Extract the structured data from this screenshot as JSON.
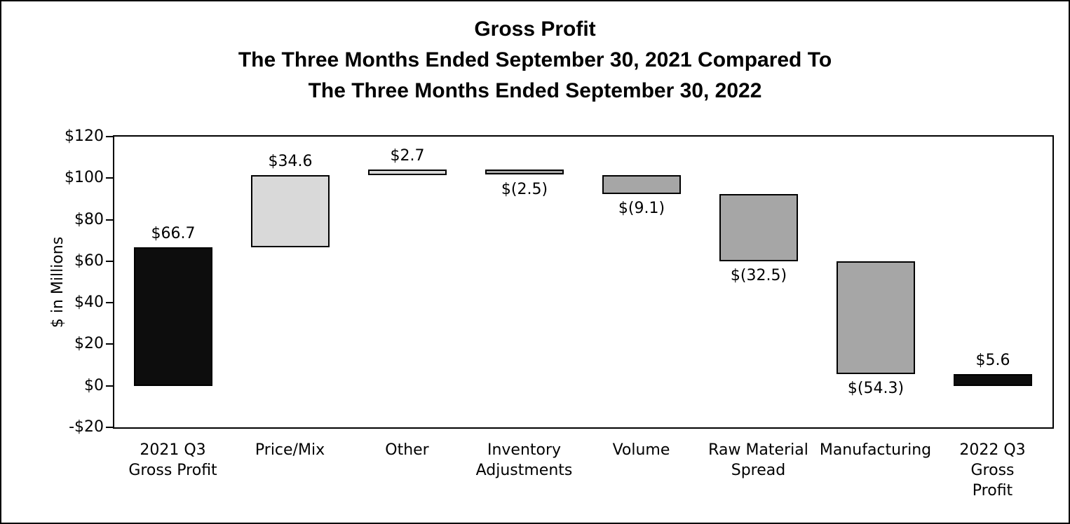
{
  "chart_data": {
    "type": "bar",
    "subtype": "waterfall",
    "title": "Gross Profit\nThe Three Months Ended September 30, 2021 Compared To\nThe Three Months Ended September 30, 2022",
    "ylabel": "$ in Millions",
    "ylim": [
      -20,
      120
    ],
    "ytick_step": 20,
    "grid": "off",
    "legend": "none",
    "yticks": [
      {
        "value": 120,
        "label": "$120"
      },
      {
        "value": 100,
        "label": "$100"
      },
      {
        "value": 80,
        "label": "$80"
      },
      {
        "value": 60,
        "label": "$60"
      },
      {
        "value": 40,
        "label": "$40"
      },
      {
        "value": 20,
        "label": "$20"
      },
      {
        "value": 0,
        "label": "$0"
      },
      {
        "value": -20,
        "label": "-$20"
      }
    ],
    "bars": [
      {
        "category": "2021 Q3\nGross Profit",
        "value": 66.7,
        "display": "$66.7",
        "kind": "total",
        "label_position": "above"
      },
      {
        "category": "Price/Mix",
        "value": 34.6,
        "display": "$34.6",
        "kind": "increase",
        "label_position": "above"
      },
      {
        "category": "Other",
        "value": 2.7,
        "display": "$2.7",
        "kind": "increase",
        "label_position": "above"
      },
      {
        "category": "Inventory\nAdjustments",
        "value": -2.5,
        "display": "$(2.5)",
        "kind": "decrease",
        "label_position": "below"
      },
      {
        "category": "Volume",
        "value": -9.1,
        "display": "$(9.1)",
        "kind": "decrease",
        "label_position": "below"
      },
      {
        "category": "Raw Material\nSpread",
        "value": -32.5,
        "display": "$(32.5)",
        "kind": "decrease",
        "label_position": "below"
      },
      {
        "category": "Manufacturing",
        "value": -54.3,
        "display": "$(54.3)",
        "kind": "decrease",
        "label_position": "below"
      },
      {
        "category": "2022 Q3\nGross\nProfit",
        "value": 5.6,
        "display": "$5.6",
        "kind": "total",
        "label_position": "above"
      }
    ],
    "colors": {
      "total": "#0d0d0d",
      "increase": "#d9d9d9",
      "decrease": "#a6a6a6",
      "bar_border": "#000000",
      "axis": "#000000",
      "background": "#ffffff",
      "text": "#000000"
    }
  }
}
